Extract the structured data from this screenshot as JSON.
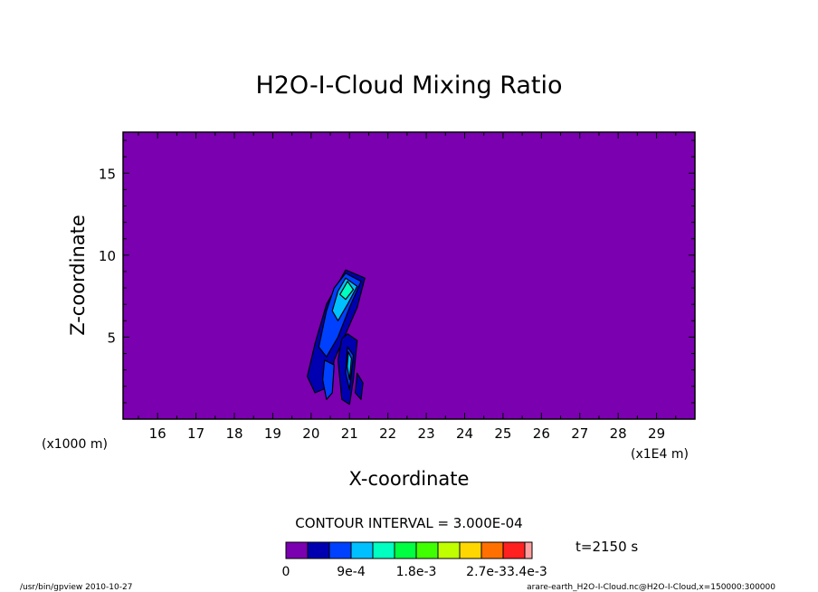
{
  "chart_data": {
    "type": "heatmap",
    "title": "H2O-I-Cloud Mixing Ratio",
    "xlabel": "X-coordinate",
    "ylabel": "Z-coordinate",
    "x_unit_left": "(x1000 m)",
    "x_unit_right": "(x1E4 m)",
    "xlim": [
      15.1,
      30.0
    ],
    "ylim": [
      0.0,
      17.5
    ],
    "x_ticks": [
      16,
      17,
      18,
      19,
      20,
      21,
      22,
      23,
      24,
      25,
      26,
      27,
      28,
      29
    ],
    "y_ticks": [
      5,
      10,
      15
    ],
    "background_color": "#7a00b0",
    "contour_interval_text": "CONTOUR INTERVAL = 3.000E-04",
    "time_text": "t=2150 s",
    "colorbar": {
      "colors": [
        "#7a00b0",
        "#0000b0",
        "#0040ff",
        "#00c0ff",
        "#00ffc0",
        "#00ff40",
        "#40ff00",
        "#c0ff00",
        "#ffd700",
        "#ff7000",
        "#ff2020",
        "#ffa0a0"
      ],
      "labels": [
        "0",
        "9e-4",
        "1.8e-3",
        "2.7e-3",
        "3.4e-3"
      ],
      "label_text": "2.7e-33.4e-3"
    },
    "footer_left": "/usr/bin/gpview   2010-10-27",
    "footer_right": "arare-earth_H2O-I-Cloud.nc@H2O-I-Cloud,x=150000:300000",
    "cloud_features": [
      {
        "level": 1,
        "points": [
          [
            20.9,
            9.1
          ],
          [
            21.4,
            8.6
          ],
          [
            21.2,
            6.8
          ],
          [
            20.9,
            5.2
          ],
          [
            20.6,
            3.6
          ],
          [
            20.5,
            2.0
          ],
          [
            20.1,
            1.6
          ],
          [
            19.9,
            2.6
          ],
          [
            20.1,
            4.6
          ],
          [
            20.4,
            7.0
          ]
        ]
      },
      {
        "level": 2,
        "points": [
          [
            20.9,
            8.9
          ],
          [
            21.3,
            8.4
          ],
          [
            21.0,
            6.8
          ],
          [
            20.7,
            5.0
          ],
          [
            20.4,
            3.8
          ],
          [
            20.2,
            4.4
          ],
          [
            20.4,
            6.6
          ],
          [
            20.6,
            8.0
          ]
        ]
      },
      {
        "level": 3,
        "points": [
          [
            20.9,
            8.6
          ],
          [
            21.2,
            8.1
          ],
          [
            20.95,
            7.0
          ],
          [
            20.7,
            6.0
          ],
          [
            20.55,
            6.6
          ],
          [
            20.7,
            7.8
          ]
        ]
      },
      {
        "level": 4,
        "points": [
          [
            20.95,
            8.4
          ],
          [
            21.1,
            7.9
          ],
          [
            20.9,
            7.3
          ],
          [
            20.75,
            7.6
          ]
        ]
      },
      {
        "level": 1,
        "points": [
          [
            20.95,
            5.2
          ],
          [
            21.2,
            4.8
          ],
          [
            21.1,
            2.4
          ],
          [
            21.0,
            0.9
          ],
          [
            20.8,
            1.2
          ],
          [
            20.7,
            3.6
          ],
          [
            20.8,
            4.9
          ]
        ]
      },
      {
        "level": 2,
        "points": [
          [
            20.95,
            4.4
          ],
          [
            21.1,
            3.9
          ],
          [
            21.0,
            1.8
          ],
          [
            20.9,
            2.8
          ]
        ]
      },
      {
        "level": 3,
        "points": [
          [
            20.97,
            4.1
          ],
          [
            21.05,
            3.7
          ],
          [
            21.0,
            2.4
          ],
          [
            20.94,
            3.2
          ]
        ]
      },
      {
        "level": 2,
        "points": [
          [
            20.35,
            3.6
          ],
          [
            20.6,
            3.3
          ],
          [
            20.55,
            1.6
          ],
          [
            20.4,
            1.2
          ],
          [
            20.3,
            2.4
          ]
        ]
      },
      {
        "level": 1,
        "points": [
          [
            21.2,
            2.8
          ],
          [
            21.35,
            2.2
          ],
          [
            21.3,
            1.2
          ],
          [
            21.15,
            1.6
          ]
        ]
      }
    ]
  }
}
